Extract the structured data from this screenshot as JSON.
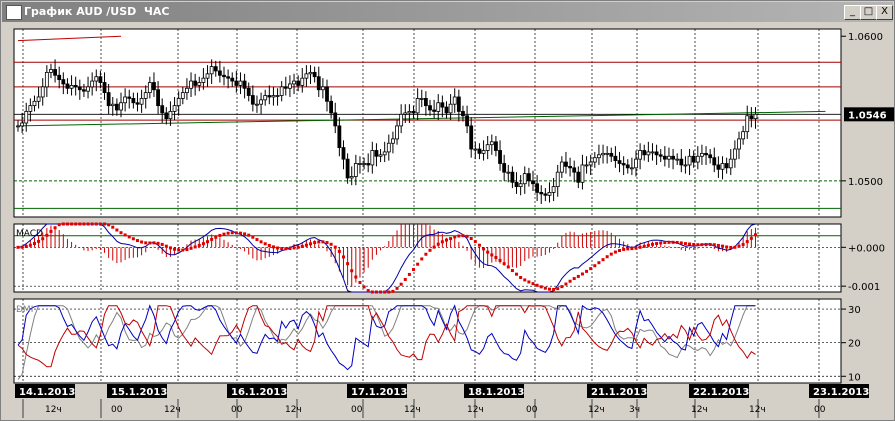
{
  "window": {
    "title": "График AUD /USD  ЧАС",
    "buttons": {
      "minimize": "_",
      "maximize": "□",
      "close": "X"
    }
  },
  "chart_data": [
    {
      "type": "candlestick",
      "panel": "price",
      "ylim": [
        1.0475,
        1.0605
      ],
      "yticks": [
        1.05,
        1.06
      ],
      "ytick_labels": [
        "1.0500",
        "1.0600"
      ],
      "current_price_label": "1.0546",
      "current_price": 1.0546,
      "horizontal_levels_red": [
        1.0582,
        1.0565,
        1.0542
      ],
      "horizontal_levels_green": [
        1.05,
        1.0481,
        1.0462
      ],
      "trendline_green": {
        "start": [
          0,
          1.0538
        ],
        "end": [
          196,
          1.0548
        ]
      },
      "trendline_red": {
        "start": [
          0,
          1.0597
        ],
        "end": [
          25,
          1.06
        ]
      },
      "close": [
        1.0538,
        1.054,
        1.0548,
        1.0552,
        1.0555,
        1.0558,
        1.0565,
        1.0575,
        1.0577,
        1.0573,
        1.057,
        1.0567,
        1.0564,
        1.0566,
        1.0565,
        1.0563,
        1.0562,
        1.0565,
        1.0569,
        1.0572,
        1.0568,
        1.0561,
        1.0552,
        1.0553,
        1.0549,
        1.0554,
        1.0558,
        1.0557,
        1.0554,
        1.0553,
        1.0557,
        1.0561,
        1.0568,
        1.0563,
        1.0552,
        1.0547,
        1.0543,
        1.0548,
        1.0552,
        1.0557,
        1.0561,
        1.0564,
        1.0569,
        1.0566,
        1.0568,
        1.0571,
        1.0574,
        1.0579,
        1.0576,
        1.0573,
        1.0572,
        1.0571,
        1.0569,
        1.0566,
        1.0569,
        1.0564,
        1.0559,
        1.0553,
        1.0553,
        1.0556,
        1.0559,
        1.0558,
        1.0559,
        1.0559,
        1.0565,
        1.0564,
        1.0567,
        1.0569,
        1.0566,
        1.0571,
        1.0574,
        1.0575,
        1.0572,
        1.0563,
        1.0565,
        1.0555,
        1.0547,
        1.0538,
        1.0523,
        1.0515,
        1.0502,
        1.0503,
        1.0512,
        1.0512,
        1.0512,
        1.0511,
        1.0521,
        1.0517,
        1.0518,
        1.052,
        1.0526,
        1.0529,
        1.0538,
        1.0546,
        1.0547,
        1.0548,
        1.0547,
        1.0557,
        1.0557,
        1.0552,
        1.0549,
        1.0548,
        1.0554,
        1.0551,
        1.0547,
        1.0553,
        1.0558,
        1.0548,
        1.0545,
        1.0538,
        1.0522,
        1.0522,
        1.0519,
        1.0521,
        1.0525,
        1.0527,
        1.0521,
        1.0512,
        1.0506,
        1.0506,
        1.0499,
        1.0496,
        1.0498,
        1.0505,
        1.05,
        1.0498,
        1.0492,
        1.0491,
        1.049,
        1.0492,
        1.0496,
        1.0506,
        1.0513,
        1.051,
        1.0509,
        1.0506,
        1.0499,
        1.0511,
        1.0511,
        1.0513,
        1.0516,
        1.0518,
        1.0519,
        1.0519,
        1.0517,
        1.0514,
        1.0512,
        1.0511,
        1.0509,
        1.0509,
        1.0515,
        1.0521,
        1.0518,
        1.052,
        1.052,
        1.0518,
        1.0517,
        1.0515,
        1.0517,
        1.0515,
        1.0515,
        1.0511,
        1.0511,
        1.0517,
        1.0513,
        1.0517,
        1.0519,
        1.0518,
        1.0516,
        1.0511,
        1.0508,
        1.0512,
        1.0509,
        1.0515,
        1.0522,
        1.0529,
        1.0534,
        1.0545,
        1.0543,
        1.0546
      ],
      "x_date_labels": [
        "14.1.2013",
        "15.1.2013",
        "16.1.2013",
        "17.1.2013",
        "18.1.2013",
        "21.1.2013",
        "22.1.2013",
        "23.1.2013"
      ],
      "x_hour_labels": [
        "12ч",
        "00",
        "12ч",
        "00",
        "12ч",
        "00",
        "12ч",
        "12ч",
        "00",
        "12ч",
        "12ч",
        "3ч",
        "12ч",
        "12ч",
        "00"
      ]
    },
    {
      "type": "histogram+line",
      "panel": "macd",
      "label": "MACD",
      "ylim": [
        -0.00115,
        0.0006
      ],
      "yticks": [
        0,
        -0.001
      ],
      "ytick_labels": [
        "+0.000",
        "-0.001"
      ]
    },
    {
      "type": "line",
      "panel": "dmi",
      "label": "DMI",
      "ylim": [
        8,
        33
      ],
      "yticks": [
        30,
        20,
        10
      ],
      "ytick_labels": [
        "30",
        "20",
        "10"
      ],
      "series_colors": {
        "plus_di": "#0000c0",
        "minus_di": "#c00000",
        "adx": "#808080"
      }
    }
  ]
}
